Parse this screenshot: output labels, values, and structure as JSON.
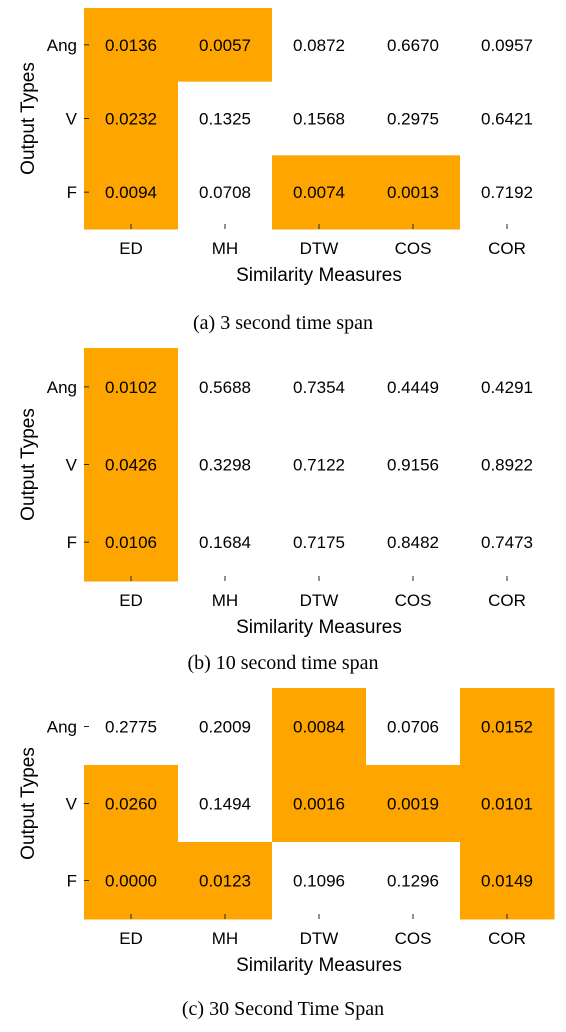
{
  "chart_data": [
    {
      "type": "heatmap",
      "caption": "(a) 3 second time span",
      "xlabel": "Similarity Measures",
      "ylabel": "Output Types",
      "x_categories": [
        "ED",
        "MH",
        "DTW",
        "COS",
        "COR"
      ],
      "y_categories": [
        "Ang",
        "V",
        "F"
      ],
      "values": [
        [
          "0.0136",
          "0.0057",
          "0.0872",
          "0.6670",
          "0.0957"
        ],
        [
          "0.0232",
          "0.1325",
          "0.1568",
          "0.2975",
          "0.6421"
        ],
        [
          "0.0094",
          "0.0708",
          "0.0074",
          "0.0013",
          "0.7192"
        ]
      ],
      "highlighted": [
        [
          true,
          true,
          false,
          false,
          false
        ],
        [
          true,
          false,
          false,
          false,
          false
        ],
        [
          true,
          false,
          true,
          true,
          false
        ]
      ]
    },
    {
      "type": "heatmap",
      "caption": "(b) 10 second time span",
      "xlabel": "Similarity Measures",
      "ylabel": "Output Types",
      "x_categories": [
        "ED",
        "MH",
        "DTW",
        "COS",
        "COR"
      ],
      "y_categories": [
        "Ang",
        "V",
        "F"
      ],
      "values": [
        [
          "0.0102",
          "0.5688",
          "0.7354",
          "0.4449",
          "0.4291"
        ],
        [
          "0.0426",
          "0.3298",
          "0.7122",
          "0.9156",
          "0.8922"
        ],
        [
          "0.0106",
          "0.1684",
          "0.7175",
          "0.8482",
          "0.7473"
        ]
      ],
      "highlighted": [
        [
          true,
          false,
          false,
          false,
          false
        ],
        [
          true,
          false,
          false,
          false,
          false
        ],
        [
          true,
          false,
          false,
          false,
          false
        ]
      ]
    },
    {
      "type": "heatmap",
      "caption": "(c) 30 Second Time Span",
      "xlabel": "Similarity Measures",
      "ylabel": "Output Types",
      "x_categories": [
        "ED",
        "MH",
        "DTW",
        "COS",
        "COR"
      ],
      "y_categories": [
        "Ang",
        "V",
        "F"
      ],
      "values": [
        [
          "0.2775",
          "0.2009",
          "0.0084",
          "0.0706",
          "0.0152"
        ],
        [
          "0.0260",
          "0.1494",
          "0.0016",
          "0.0019",
          "0.0101"
        ],
        [
          "0.0000",
          "0.0123",
          "0.1096",
          "0.1296",
          "0.0149"
        ]
      ],
      "highlighted": [
        [
          false,
          false,
          true,
          false,
          true
        ],
        [
          true,
          false,
          true,
          true,
          true
        ],
        [
          true,
          true,
          false,
          false,
          true
        ]
      ]
    }
  ],
  "colors": {
    "highlight": "#ffa500",
    "background": "#ffffff",
    "text": "#000000"
  }
}
